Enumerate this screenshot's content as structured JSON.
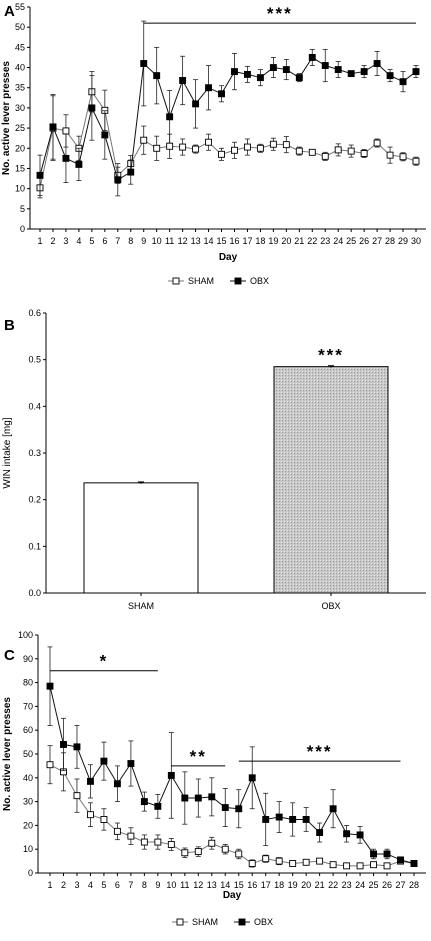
{
  "figure": {
    "panel_labels": [
      "A",
      "B",
      "C"
    ]
  },
  "chart_data": [
    {
      "type": "line",
      "panel": "A",
      "xlabel": "Day",
      "ylabel": "No. active lever presses",
      "ylim": [
        0,
        55
      ],
      "yticks": [
        0,
        5,
        10,
        15,
        20,
        25,
        30,
        35,
        40,
        45,
        50,
        55
      ],
      "x": [
        1,
        2,
        3,
        4,
        5,
        6,
        7,
        8,
        9,
        10,
        11,
        12,
        13,
        14,
        15,
        16,
        17,
        18,
        19,
        20,
        21,
        22,
        23,
        24,
        25,
        26,
        27,
        28,
        29,
        30
      ],
      "series": [
        {
          "name": "SHAM",
          "marker": "open-square",
          "values": [
            10.2,
            25.0,
            24.3,
            20.0,
            34.0,
            29.4,
            13.3,
            16.2,
            22.0,
            20.0,
            20.5,
            20.3,
            19.8,
            21.5,
            18.5,
            19.5,
            20.3,
            20.0,
            21.0,
            20.9,
            19.3,
            19.0,
            18.0,
            19.6,
            19.3,
            18.7,
            21.3,
            18.3,
            17.9,
            16.8
          ],
          "errors": [
            2.5,
            8.0,
            4.0,
            3.0,
            5.0,
            5.0,
            2.0,
            2.0,
            3.5,
            3.0,
            3.0,
            2.0,
            1.0,
            2.0,
            1.5,
            2.0,
            2.0,
            1.0,
            1.5,
            2.0,
            1.0,
            0.5,
            1.0,
            1.5,
            1.5,
            1.0,
            1.0,
            2.0,
            1.0,
            1.0
          ]
        },
        {
          "name": "OBX",
          "marker": "filled-square",
          "values": [
            13.3,
            25.3,
            17.5,
            16.0,
            30.0,
            23.3,
            12.2,
            14.1,
            41.0,
            38.0,
            27.8,
            36.8,
            31.0,
            35.0,
            33.5,
            39.0,
            38.3,
            37.5,
            40.0,
            39.5,
            37.5,
            42.5,
            40.5,
            39.5,
            38.5,
            39.0,
            41.0,
            38.0,
            36.5,
            39.0
          ],
          "errors": [
            5.0,
            8.0,
            6.0,
            4.0,
            8.0,
            6.0,
            4.0,
            3.0,
            10.5,
            7.0,
            6.5,
            6.0,
            6.0,
            5.5,
            2.0,
            4.5,
            2.0,
            2.0,
            2.5,
            2.5,
            1.0,
            2.0,
            4.0,
            2.0,
            0.5,
            1.5,
            3.0,
            1.5,
            2.5,
            1.5
          ]
        }
      ],
      "annotations": [
        {
          "text": "***",
          "x_start": 9,
          "x_end": 30,
          "y": 51
        }
      ],
      "legend": "bottom"
    },
    {
      "type": "bar",
      "panel": "B",
      "categories": [
        "SHAM",
        "OBX"
      ],
      "values": [
        0.236,
        0.485
      ],
      "errors": [
        0.002,
        0.002
      ],
      "ylabel": "WIN intake [mg]",
      "ylim": [
        0,
        0.6
      ],
      "yticks": [
        "0.0",
        "0.1",
        "0.2",
        "0.3",
        "0.4",
        "0.5",
        "0.6"
      ],
      "annotations": [
        {
          "text": "***",
          "category": "OBX"
        }
      ]
    },
    {
      "type": "line",
      "panel": "C",
      "xlabel": "Day",
      "ylabel": "No. active lever presses",
      "ylim": [
        0,
        100
      ],
      "yticks": [
        0,
        10,
        20,
        30,
        40,
        50,
        60,
        70,
        80,
        90,
        100
      ],
      "x": [
        1,
        2,
        3,
        4,
        5,
        6,
        7,
        8,
        9,
        10,
        11,
        12,
        13,
        14,
        15,
        16,
        17,
        18,
        19,
        20,
        21,
        22,
        23,
        24,
        25,
        26,
        27,
        28
      ],
      "series": [
        {
          "name": "SHAM",
          "marker": "open-square",
          "values": [
            45.5,
            42.5,
            32.5,
            24.5,
            22.5,
            17.5,
            15.5,
            13.0,
            13.0,
            12.0,
            8.5,
            9.0,
            12.5,
            10.0,
            8.0,
            4.0,
            6.0,
            5.0,
            4.0,
            4.5,
            5.0,
            3.5,
            3.0,
            3.0,
            3.5,
            3.0,
            5.0,
            4.0
          ],
          "errors": [
            8.0,
            8.0,
            7.0,
            5.0,
            4.5,
            3.5,
            3.5,
            3.0,
            3.0,
            2.5,
            2.0,
            2.0,
            2.5,
            2.0,
            2.0,
            1.5,
            1.5,
            1.5,
            1.0,
            1.0,
            1.0,
            1.0,
            0.5,
            0.5,
            0.5,
            0.5,
            1.0,
            0.5
          ]
        },
        {
          "name": "OBX",
          "marker": "filled-square",
          "values": [
            78.5,
            54.0,
            53.0,
            38.5,
            47.0,
            37.5,
            46.0,
            30.0,
            28.0,
            41.0,
            31.5,
            31.5,
            32.0,
            27.5,
            27.0,
            40.0,
            22.5,
            23.5,
            22.5,
            22.5,
            17.0,
            27.0,
            16.5,
            16.0,
            8.0,
            8.0,
            5.5,
            4.0
          ],
          "errors": [
            16.5,
            11.0,
            9.0,
            7.0,
            8.0,
            7.5,
            9.5,
            4.0,
            5.0,
            18.0,
            11.0,
            8.0,
            8.0,
            8.0,
            8.0,
            13.0,
            11.0,
            6.5,
            7.0,
            5.0,
            4.0,
            8.0,
            3.5,
            3.5,
            2.0,
            2.0,
            1.0,
            1.0
          ]
        }
      ],
      "annotations": [
        {
          "text": "*",
          "x_start": 1,
          "x_end": 9,
          "y": 85
        },
        {
          "text": "**",
          "x_start": 10,
          "x_end": 14,
          "y": 45
        },
        {
          "text": "***",
          "x_start": 15,
          "x_end": 27,
          "y": 47
        }
      ],
      "legend": "bottom"
    }
  ]
}
